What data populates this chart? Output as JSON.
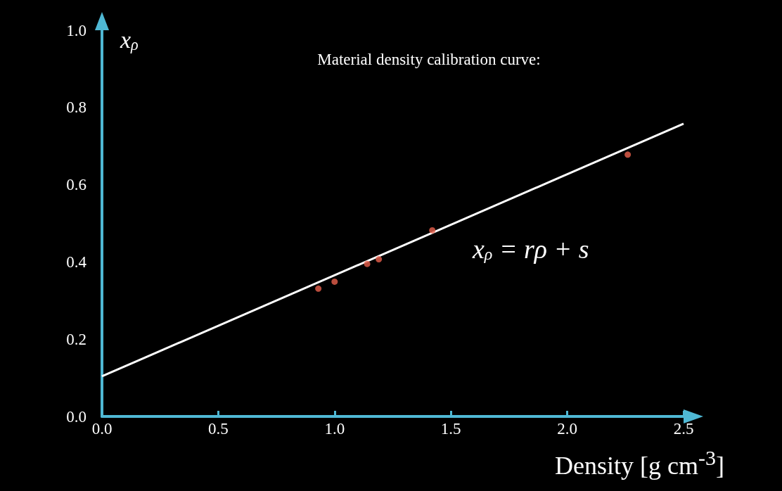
{
  "chart_data": {
    "type": "scatter",
    "title": "Material density calibration curve:",
    "xlabel": "Density [g cm$^{-3}$]",
    "ylabel": "x$_{ρ}$",
    "annotations": [
      "x$_{ρ}$ = rρ + s"
    ],
    "x": [
      0.93,
      1.0,
      1.14,
      1.19,
      1.42,
      2.26
    ],
    "series": [
      {
        "color": "#e8604c",
        "values": [
          0.331,
          0.349,
          0.395,
          0.407,
          0.482,
          0.678
        ],
        "marker": "circle"
      },
      {
        "type": "line",
        "color": "#ffffff",
        "x": [
          0,
          2.5
        ],
        "values": [
          0.104,
          0.758
        ],
        "marker": "none",
        "line_style": "solid"
      }
    ],
    "xlim": [
      0,
      2.5
    ],
    "xticks": [
      {
        "value": 0,
        "label": "0.0"
      },
      0.5,
      {
        "value": 1,
        "label": "1.0"
      },
      1.5,
      {
        "value": 2,
        "label": "2.0"
      },
      2.5
    ],
    "ylim": [
      0,
      1.0
    ],
    "yticks": [
      {
        "value": 0,
        "label": "0.0"
      },
      0.2,
      0.4,
      0.6,
      0.8,
      {
        "value": 1,
        "label": "1.0"
      }
    ],
    "grid": false
  }
}
